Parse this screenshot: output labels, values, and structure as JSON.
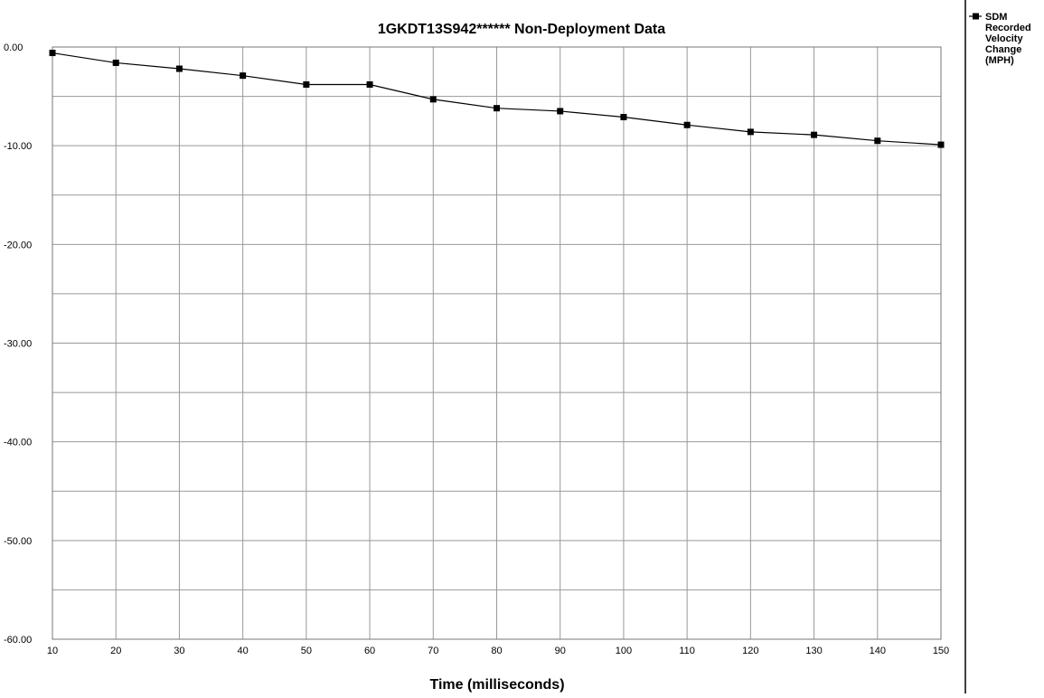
{
  "chart_data": {
    "type": "line",
    "title": "1GKDT13S942******  Non-Deployment Data",
    "xlabel": "Time (milliseconds)",
    "ylabel": "",
    "x": [
      10,
      20,
      30,
      40,
      50,
      60,
      70,
      80,
      90,
      100,
      110,
      120,
      130,
      140,
      150
    ],
    "xlim": [
      10,
      150
    ],
    "ylim": [
      -60,
      0
    ],
    "x_ticks": [
      "10",
      "20",
      "30",
      "40",
      "50",
      "60",
      "70",
      "80",
      "90",
      "100",
      "110",
      "120",
      "130",
      "140",
      "150"
    ],
    "y_ticks": [
      "0.00",
      "-10.00",
      "-20.00",
      "-30.00",
      "-40.00",
      "-50.00",
      "-60.00"
    ],
    "y_tick_values": [
      0,
      -10,
      -20,
      -30,
      -40,
      -50,
      -60
    ],
    "minor_gridline_step": 5,
    "grid": true,
    "legend_position": "right",
    "series": [
      {
        "name": "SDM Recorded Velocity Change (MPH)",
        "legend_lines": [
          "SDM",
          "Recorded",
          "Velocity",
          "Change",
          "(MPH)"
        ],
        "marker": "square",
        "color": "#000000",
        "values": [
          -0.6,
          -1.6,
          -2.2,
          -2.9,
          -3.8,
          -3.8,
          -5.3,
          -6.2,
          -6.5,
          -7.1,
          -7.9,
          -8.6,
          -8.9,
          -9.5,
          -9.9
        ]
      }
    ]
  }
}
